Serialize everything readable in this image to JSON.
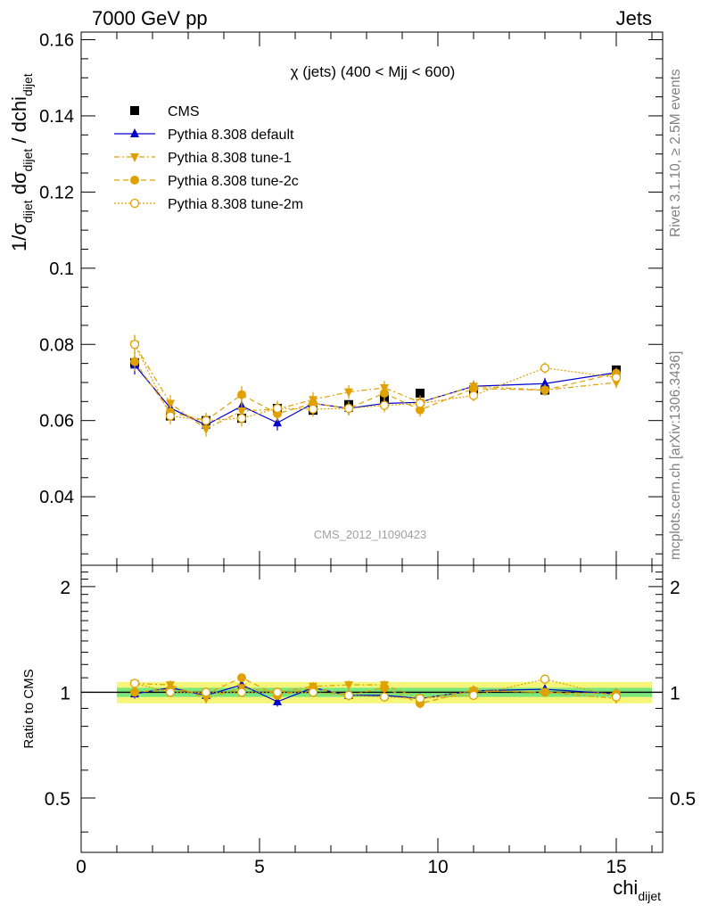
{
  "header": {
    "left": "7000 GeV pp",
    "right": "Jets"
  },
  "side": {
    "rivet": "Rivet 3.1.10, ≥ 2.5M events",
    "mcplots": "mcplots.cern.ch [arXiv:1306.3436]"
  },
  "colors": {
    "cms": "#000000",
    "default": "#0000cc",
    "tune": "#e0a000",
    "band_inner": "#7be67b",
    "band_outer": "#f5f57a"
  },
  "chart_data": [
    {
      "type": "scatter",
      "title": "χ (jets) (400 < Mjj <  600)",
      "watermark": "CMS_2012_I1090423",
      "ylabel_parts": [
        "1/σ",
        "dijet",
        " dσ",
        "dijet",
        " / dchi",
        "dijet"
      ],
      "xlim": [
        0,
        16.3
      ],
      "ylim": [
        0.022,
        0.162
      ],
      "yticks": [
        0.04,
        0.06,
        0.08,
        0.1,
        0.12,
        0.14,
        0.16
      ],
      "ytick_labels": [
        "0.04",
        "0.06",
        "0.08",
        "0.1",
        "0.12",
        "0.14",
        "0.16"
      ],
      "x": [
        1.5,
        2.5,
        3.5,
        4.5,
        5.5,
        6.5,
        7.5,
        8.5,
        9.5,
        11,
        13,
        15
      ],
      "xerr_edges": [
        1,
        2,
        3,
        4,
        5,
        6,
        7,
        8,
        9,
        10,
        12,
        14,
        16
      ],
      "series": [
        {
          "name": "CMS",
          "style": "cms",
          "values": [
            0.0752,
            0.0612,
            0.06,
            0.0606,
            0.0632,
            0.0627,
            0.0642,
            0.0655,
            0.0672,
            0.068,
            0.068,
            0.0733
          ],
          "err": [
            0.0008,
            0.0008,
            0.0008,
            0.0008,
            0.0008,
            0.0008,
            0.0008,
            0.0008,
            0.0008,
            0.0008,
            0.0008,
            0.0008
          ]
        },
        {
          "name": "Pythia 8.308 default",
          "style": "default",
          "values": [
            0.0746,
            0.0633,
            0.0588,
            0.0638,
            0.0594,
            0.0645,
            0.0632,
            0.0645,
            0.0648,
            0.069,
            0.0697,
            0.0726
          ],
          "err": [
            0.0025,
            0.0022,
            0.002,
            0.0022,
            0.002,
            0.002,
            0.0018,
            0.0018,
            0.0018,
            0.0015,
            0.0015,
            0.0015
          ]
        },
        {
          "name": "Pythia 8.308 tune-1",
          "style": "tune1",
          "values": [
            0.08,
            0.0645,
            0.0578,
            0.0625,
            0.063,
            0.0655,
            0.0675,
            0.0686,
            0.0648,
            0.069,
            0.068,
            0.07
          ],
          "err": [
            0.0025,
            0.0022,
            0.002,
            0.0022,
            0.002,
            0.002,
            0.0018,
            0.0018,
            0.0018,
            0.0015,
            0.0015,
            0.0015
          ]
        },
        {
          "name": "Pythia 8.308 tune-2c",
          "style": "tune2c",
          "values": [
            0.0755,
            0.0622,
            0.06,
            0.0668,
            0.0618,
            0.0645,
            0.0632,
            0.0672,
            0.0628,
            0.0684,
            0.068,
            0.0724
          ],
          "err": [
            0.0025,
            0.0022,
            0.002,
            0.0022,
            0.002,
            0.002,
            0.0018,
            0.0018,
            0.0018,
            0.0015,
            0.0015,
            0.0015
          ]
        },
        {
          "name": "Pythia 8.308 tune-2m",
          "style": "tune2m",
          "values": [
            0.08,
            0.0612,
            0.06,
            0.0606,
            0.0632,
            0.063,
            0.0632,
            0.064,
            0.0645,
            0.0666,
            0.0738,
            0.0713
          ],
          "err": [
            0.0025,
            0.0022,
            0.002,
            0.0022,
            0.002,
            0.002,
            0.0018,
            0.0018,
            0.0018,
            0.0015,
            0.0015,
            0.0015
          ]
        }
      ]
    },
    {
      "type": "scatter",
      "ylabel": "Ratio to CMS",
      "xlabel_main": "chi",
      "xlabel_sub": "dijet",
      "xlim": [
        0,
        16.3
      ],
      "ylim": [
        0.35,
        2.3
      ],
      "yticks": [
        0.5,
        1,
        2
      ],
      "ytick_labels": [
        "0.5",
        "1",
        "2"
      ],
      "xticks": [
        0,
        5,
        10,
        15
      ],
      "xtick_labels": [
        "0",
        "5",
        "10",
        "15"
      ],
      "band_inner_halfwidth": 0.03,
      "band_outer_halfwidth": 0.07,
      "x": [
        1.5,
        2.5,
        3.5,
        4.5,
        5.5,
        6.5,
        7.5,
        8.5,
        9.5,
        11,
        13,
        15
      ],
      "series": [
        {
          "name": "Pythia 8.308 default",
          "style": "default",
          "values": [
            0.99,
            1.03,
            0.98,
            1.05,
            0.94,
            1.03,
            0.98,
            0.98,
            0.96,
            1.01,
            1.02,
            0.99
          ]
        },
        {
          "name": "Pythia 8.308 tune-1",
          "style": "tune1",
          "values": [
            1.06,
            1.05,
            0.96,
            1.03,
            1.0,
            1.04,
            1.05,
            1.05,
            0.96,
            1.01,
            1.0,
            0.96
          ]
        },
        {
          "name": "Pythia 8.308 tune-2c",
          "style": "tune2c",
          "values": [
            1.0,
            1.02,
            0.99,
            1.1,
            0.98,
            1.03,
            0.98,
            1.03,
            0.93,
            1.01,
            1.0,
            0.99
          ]
        },
        {
          "name": "Pythia 8.308 tune-2m",
          "style": "tune2m",
          "values": [
            1.06,
            1.0,
            1.0,
            1.0,
            1.0,
            1.0,
            0.98,
            0.97,
            0.96,
            0.98,
            1.09,
            0.97
          ]
        }
      ]
    }
  ]
}
